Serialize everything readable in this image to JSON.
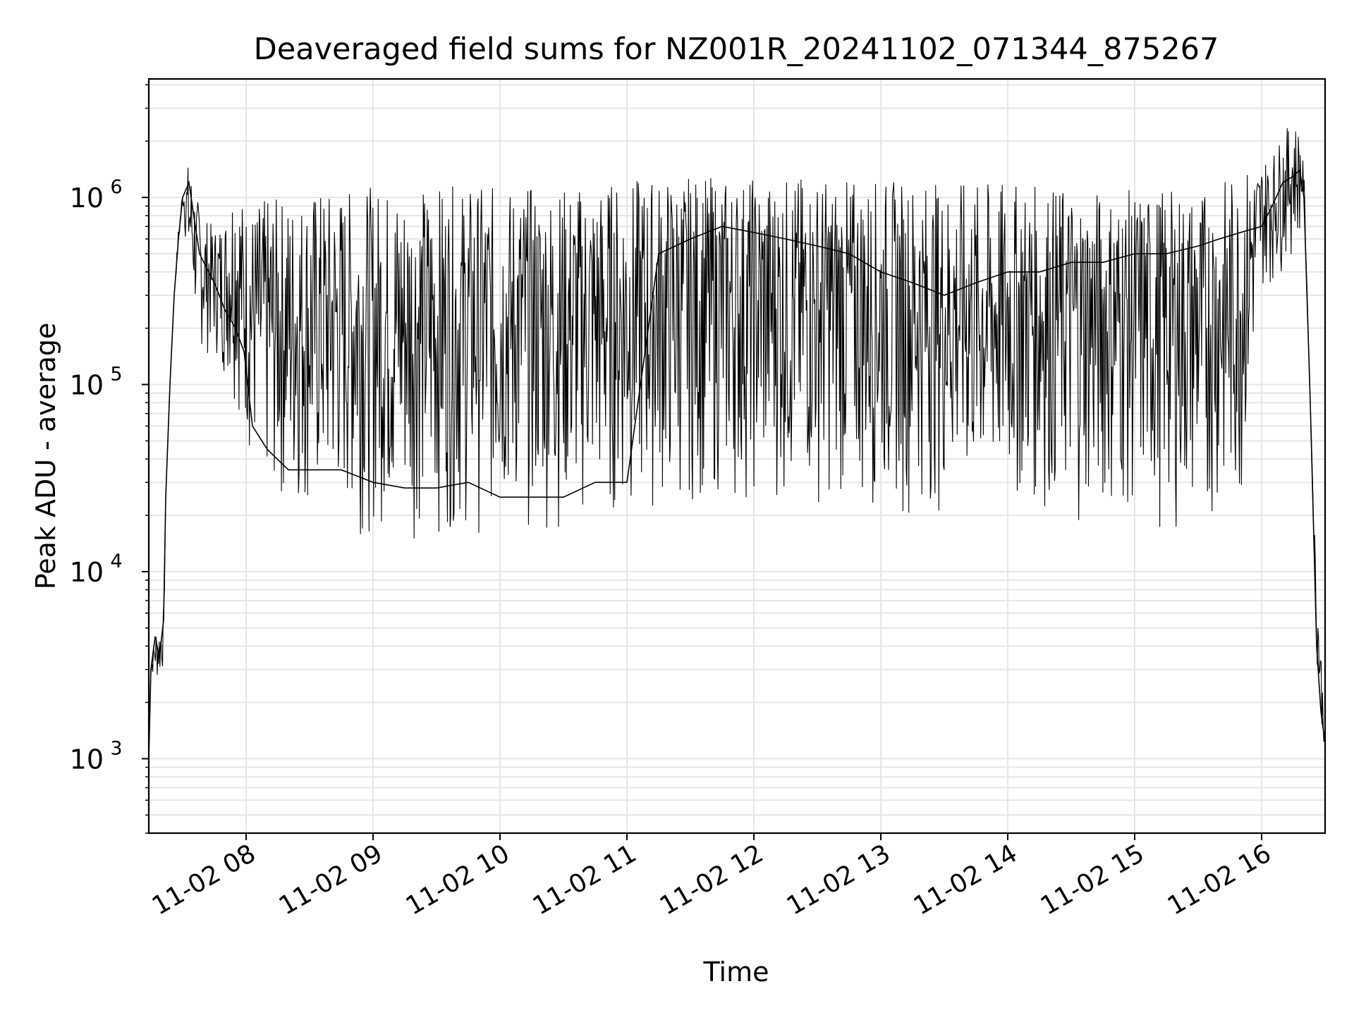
{
  "chart_data": {
    "type": "line",
    "title": "Deaveraged field sums for NZ001R_20241102_071344_875267",
    "xlabel": "Time",
    "ylabel": "Peak ADU - average",
    "yscale": "log",
    "grid": true,
    "line_color": "#000000",
    "grid_color": "#e6e6e6",
    "xlim": [
      "2024-11-02 07:14",
      "2024-11-02 16:30"
    ],
    "ylim": [
      400,
      4300000
    ],
    "x_ticks": [
      "2024-11-02 08:00",
      "2024-11-02 09:00",
      "2024-11-02 10:00",
      "2024-11-02 11:00",
      "2024-11-02 12:00",
      "2024-11-02 13:00",
      "2024-11-02 14:00",
      "2024-11-02 15:00",
      "2024-11-02 16:00"
    ],
    "x_tick_labels": [
      "11-02 08",
      "11-02 09",
      "11-02 10",
      "11-02 11",
      "11-02 12",
      "11-02 13",
      "11-02 14",
      "11-02 15",
      "11-02 16"
    ],
    "y_ticks": [
      1000,
      10000,
      100000,
      1000000
    ],
    "y_tick_labels": [
      {
        "base": "10",
        "exp": "3"
      },
      {
        "base": "10",
        "exp": "4"
      },
      {
        "base": "10",
        "exp": "5"
      },
      {
        "base": "10",
        "exp": "6"
      }
    ],
    "series": [
      {
        "x": [
          "2024-11-02 07:14",
          "2024-11-02 07:15",
          "2024-11-02 07:17",
          "2024-11-02 07:19",
          "2024-11-02 07:21",
          "2024-11-02 07:22",
          "2024-11-02 07:24",
          "2024-11-02 07:26",
          "2024-11-02 07:28",
          "2024-11-02 07:30",
          "2024-11-02 07:33",
          "2024-11-02 07:36",
          "2024-11-02 07:38",
          "2024-11-02 07:40",
          "2024-11-02 07:45",
          "2024-11-02 07:50",
          "2024-11-02 07:55",
          "2024-11-02 07:59",
          "2024-11-02 08:03",
          "2024-11-02 08:10",
          "2024-11-02 08:20",
          "2024-11-02 08:30",
          "2024-11-02 08:45",
          "2024-11-02 09:00",
          "2024-11-02 09:15",
          "2024-11-02 09:30",
          "2024-11-02 09:45",
          "2024-11-02 10:00",
          "2024-11-02 10:15",
          "2024-11-02 10:30",
          "2024-11-02 10:45",
          "2024-11-02 11:00",
          "2024-11-02 11:15",
          "2024-11-02 11:30",
          "2024-11-02 11:45",
          "2024-11-02 12:00",
          "2024-11-02 12:15",
          "2024-11-02 12:30",
          "2024-11-02 12:45",
          "2024-11-02 13:00",
          "2024-11-02 13:15",
          "2024-11-02 13:30",
          "2024-11-02 13:45",
          "2024-11-02 14:00",
          "2024-11-02 14:15",
          "2024-11-02 14:30",
          "2024-11-02 14:45",
          "2024-11-02 15:00",
          "2024-11-02 15:15",
          "2024-11-02 15:30",
          "2024-11-02 15:40",
          "2024-11-02 15:50",
          "2024-11-02 16:00",
          "2024-11-02 16:05",
          "2024-11-02 16:10",
          "2024-11-02 16:15",
          "2024-11-02 16:18",
          "2024-11-02 16:20",
          "2024-11-02 16:23",
          "2024-11-02 16:26",
          "2024-11-02 16:28",
          "2024-11-02 16:30"
        ],
        "y": [
          1000,
          3000,
          4500,
          3500,
          5500,
          25000,
          100000,
          300000,
          600000,
          1000000,
          1200000,
          700000,
          500000,
          450000,
          350000,
          250000,
          200000,
          150000,
          60000,
          45000,
          35000,
          35000,
          35000,
          30000,
          28000,
          28000,
          30000,
          25000,
          25000,
          25000,
          30000,
          30000,
          500000,
          600000,
          700000,
          650000,
          600000,
          550000,
          500000,
          400000,
          350000,
          300000,
          350000,
          400000,
          400000,
          450000,
          450000,
          500000,
          500000,
          550000,
          600000,
          650000,
          700000,
          900000,
          1200000,
          1300000,
          1400000,
          1000000,
          80000,
          4000,
          1800,
          1200
        ],
        "y_low": [
          1000,
          3000,
          2500,
          2500,
          3000,
          25000,
          100000,
          300000,
          500000,
          900000,
          300000,
          200000,
          150000,
          140000,
          140000,
          100000,
          80000,
          50000,
          30000,
          22000,
          20000,
          18000,
          17000,
          15000,
          15000,
          15000,
          15000,
          16000,
          16000,
          16000,
          17000,
          18000,
          20000,
          22000,
          22000,
          22000,
          22000,
          22000,
          22000,
          20000,
          20000,
          20000,
          20000,
          20000,
          20000,
          18000,
          18000,
          18000,
          17000,
          17000,
          18000,
          20000,
          300000,
          350000,
          400000,
          500000,
          600000,
          1000000,
          80000,
          3500,
          1500,
          1100
        ],
        "y_high": [
          1000,
          3000,
          5000,
          5000,
          6000,
          25000,
          100000,
          300000,
          700000,
          1100000,
          1600000,
          1100000,
          900000,
          800000,
          700000,
          800000,
          1500000,
          900000,
          900000,
          1000000,
          1000000,
          1100000,
          1100000,
          1150000,
          1150000,
          1150000,
          1150000,
          1150000,
          1150000,
          1150000,
          1200000,
          1250000,
          1300000,
          1300000,
          1300000,
          1300000,
          1300000,
          1300000,
          1250000,
          1250000,
          1250000,
          1200000,
          1200000,
          1200000,
          1150000,
          1150000,
          1100000,
          1100000,
          1100000,
          1100000,
          1200000,
          1400000,
          1600000,
          1700000,
          2200000,
          2600000,
          2300000,
          1400000,
          80000,
          8000,
          4000,
          1200
        ]
      }
    ]
  }
}
